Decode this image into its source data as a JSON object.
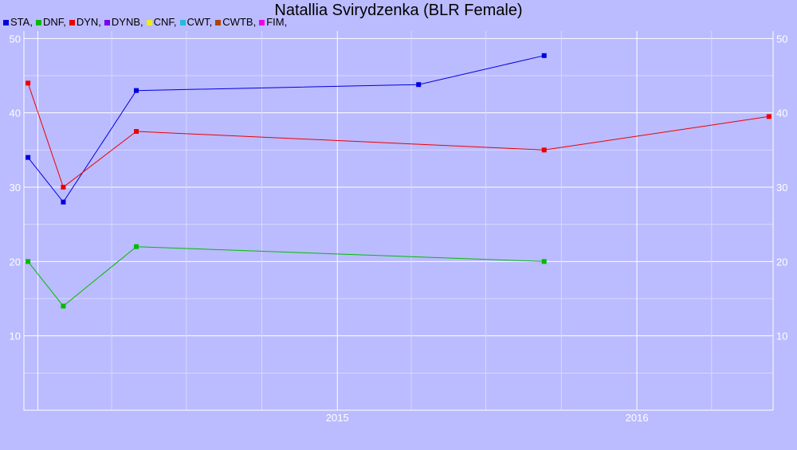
{
  "chart_data": {
    "type": "line",
    "title": "Natallia Svirydzenka (BLR Female)",
    "legend": [
      {
        "name": "STA",
        "label": "STA,",
        "color": "#0000dd"
      },
      {
        "name": "DNF",
        "label": "DNF,",
        "color": "#00bb00"
      },
      {
        "name": "DYN",
        "label": "DYN,",
        "color": "#ee0000"
      },
      {
        "name": "DYNB",
        "label": "DYNB,",
        "color": "#7700ee"
      },
      {
        "name": "CNF",
        "label": "CNF,",
        "color": "#eeee00"
      },
      {
        "name": "CWT",
        "label": "CWT,",
        "color": "#22bbdd"
      },
      {
        "name": "CWTB",
        "label": "CWTB,",
        "color": "#aa4400"
      },
      {
        "name": "FIM",
        "label": "FIM,",
        "color": "#ee00ee"
      }
    ],
    "legend_placement": "top-left",
    "x_axis": {
      "type": "date",
      "range": [
        "2013-12-15",
        "2016-06-15"
      ],
      "tick_labels": [
        "2015",
        "2016"
      ]
    },
    "y_axis": {
      "range": [
        0,
        51
      ],
      "ticks": [
        10,
        20,
        30,
        40,
        50
      ],
      "labels_both_sides": true
    },
    "grid": true,
    "series": [
      {
        "name": "STA",
        "color": "#0000dd",
        "points": [
          [
            "2013-12-20",
            34
          ],
          [
            "2014-02-01",
            28
          ],
          [
            "2014-05-01",
            43
          ],
          [
            "2015-04-10",
            43.8
          ],
          [
            "2015-09-10",
            47.7
          ]
        ]
      },
      {
        "name": "DNF",
        "color": "#00bb00",
        "points": [
          [
            "2013-12-20",
            20
          ],
          [
            "2014-02-01",
            14
          ],
          [
            "2014-05-01",
            22
          ],
          [
            "2015-09-10",
            20
          ]
        ]
      },
      {
        "name": "DYN",
        "color": "#ee0000",
        "points": [
          [
            "2013-12-20",
            44
          ],
          [
            "2014-02-01",
            30
          ],
          [
            "2014-05-01",
            37.5
          ],
          [
            "2015-09-10",
            35
          ],
          [
            "2016-06-10",
            39.5
          ]
        ]
      }
    ]
  }
}
